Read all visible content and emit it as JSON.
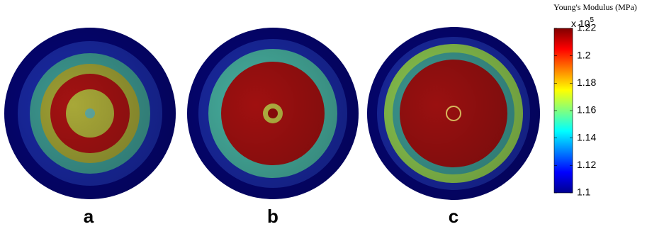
{
  "chart_data": {
    "type": "colorbar",
    "title": "Young's Modulus (MPa)",
    "multiplier": "x 10",
    "multiplier_exponent": "5",
    "clim": [
      1.1,
      1.22
    ],
    "cticks": [
      1.1,
      1.12,
      1.14,
      1.16,
      1.18,
      1.2,
      1.22
    ],
    "colormap": "jet",
    "panels": [
      "a",
      "b",
      "c"
    ]
  }
}
